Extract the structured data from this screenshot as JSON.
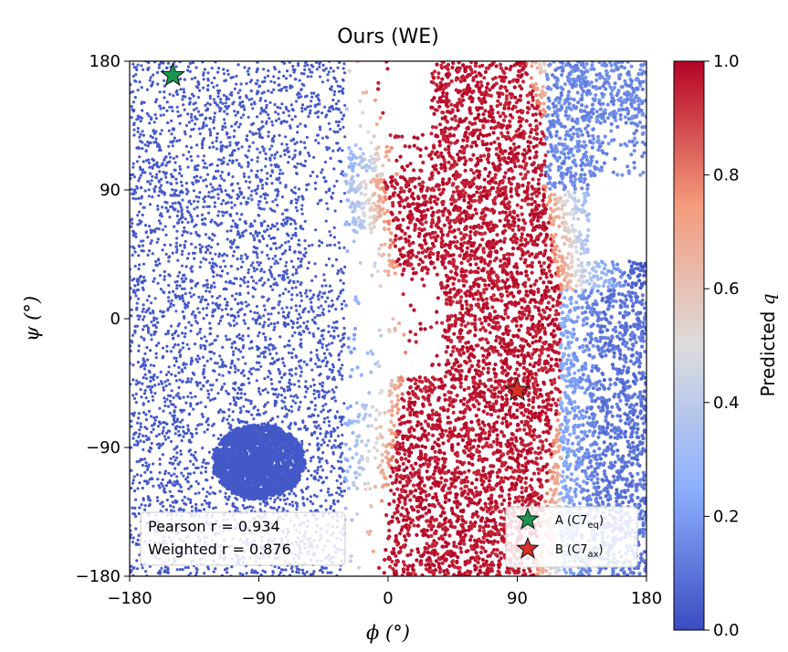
{
  "chart_data": {
    "type": "scatter",
    "title": "Ours (WE)",
    "xlabel": "ϕ (°)",
    "ylabel": "ψ (°)",
    "xlim": [
      -180,
      180
    ],
    "ylim": [
      -180,
      180
    ],
    "xticks": [
      "−180",
      "−90",
      "0",
      "90",
      "180"
    ],
    "yticks": [
      "−180",
      "−90",
      "0",
      "90",
      "180"
    ],
    "colorbar": {
      "label": "Predicted q",
      "range": [
        0.0,
        1.0
      ],
      "ticks": [
        "0.0",
        "0.2",
        "0.4",
        "0.6",
        "0.8",
        "1.0"
      ],
      "colormap": "coolwarm",
      "colors": [
        "#3b4cc0",
        "#8db0fe",
        "#dddcdc",
        "#f49a7b",
        "#b40426"
      ]
    },
    "stats_box": {
      "pearson": "Pearson r = 0.934",
      "weighted": "Weighted r = 0.876"
    },
    "markers": [
      {
        "label": "A (C7eq)",
        "phi": -150,
        "psi": 170,
        "color": "#1a9850"
      },
      {
        "label": "B (C7ax)",
        "phi": 90,
        "psi": -50,
        "color": "#d73027"
      }
    ],
    "density_regions": [
      {
        "region": "left-sparse",
        "phi": [
          -180,
          -30
        ],
        "psi": [
          -180,
          180
        ],
        "q": 0.0
      },
      {
        "region": "dense-blob",
        "phi": [
          -110,
          -70
        ],
        "psi": [
          -110,
          -80
        ],
        "q": 0.0
      },
      {
        "region": "right-top",
        "phi": [
          40,
          180
        ],
        "psi": [
          100,
          180
        ],
        "q": 0.8
      },
      {
        "region": "center-red",
        "phi": [
          20,
          130
        ],
        "psi": [
          -180,
          100
        ],
        "q": 1.0
      }
    ]
  },
  "legend": {
    "a_label": "A (C7",
    "a_sub": "eq",
    "b_label": "B (C7",
    "b_sub": "ax"
  }
}
